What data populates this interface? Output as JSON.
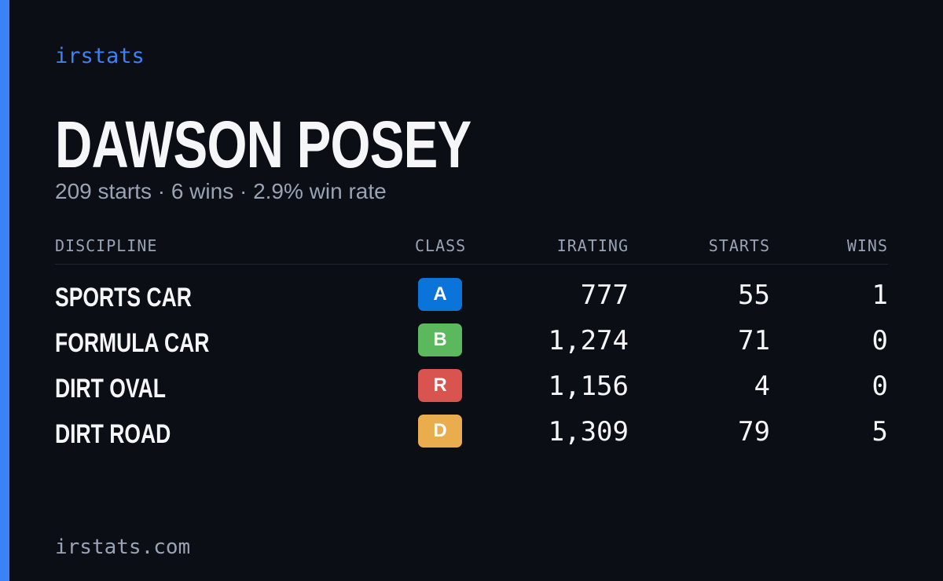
{
  "brand": "irstats",
  "driver": {
    "name": "DAWSON POSEY",
    "summary": "209 starts · 6 wins · 2.9% win rate"
  },
  "table": {
    "headers": [
      "DISCIPLINE",
      "CLASS",
      "IRATING",
      "STARTS",
      "WINS"
    ],
    "rows": [
      {
        "discipline": "SPORTS CAR",
        "class": "A",
        "class_color": "#0a74da",
        "irating": "777",
        "starts": "55",
        "wins": "1"
      },
      {
        "discipline": "FORMULA CAR",
        "class": "B",
        "class_color": "#5cb85c",
        "irating": "1,274",
        "starts": "71",
        "wins": "0"
      },
      {
        "discipline": "DIRT OVAL",
        "class": "R",
        "class_color": "#d9534f",
        "irating": "1,156",
        "starts": "4",
        "wins": "0"
      },
      {
        "discipline": "DIRT ROAD",
        "class": "D",
        "class_color": "#e9ad4e",
        "irating": "1,309",
        "starts": "79",
        "wins": "5"
      }
    ]
  },
  "footer": "irstats.com"
}
